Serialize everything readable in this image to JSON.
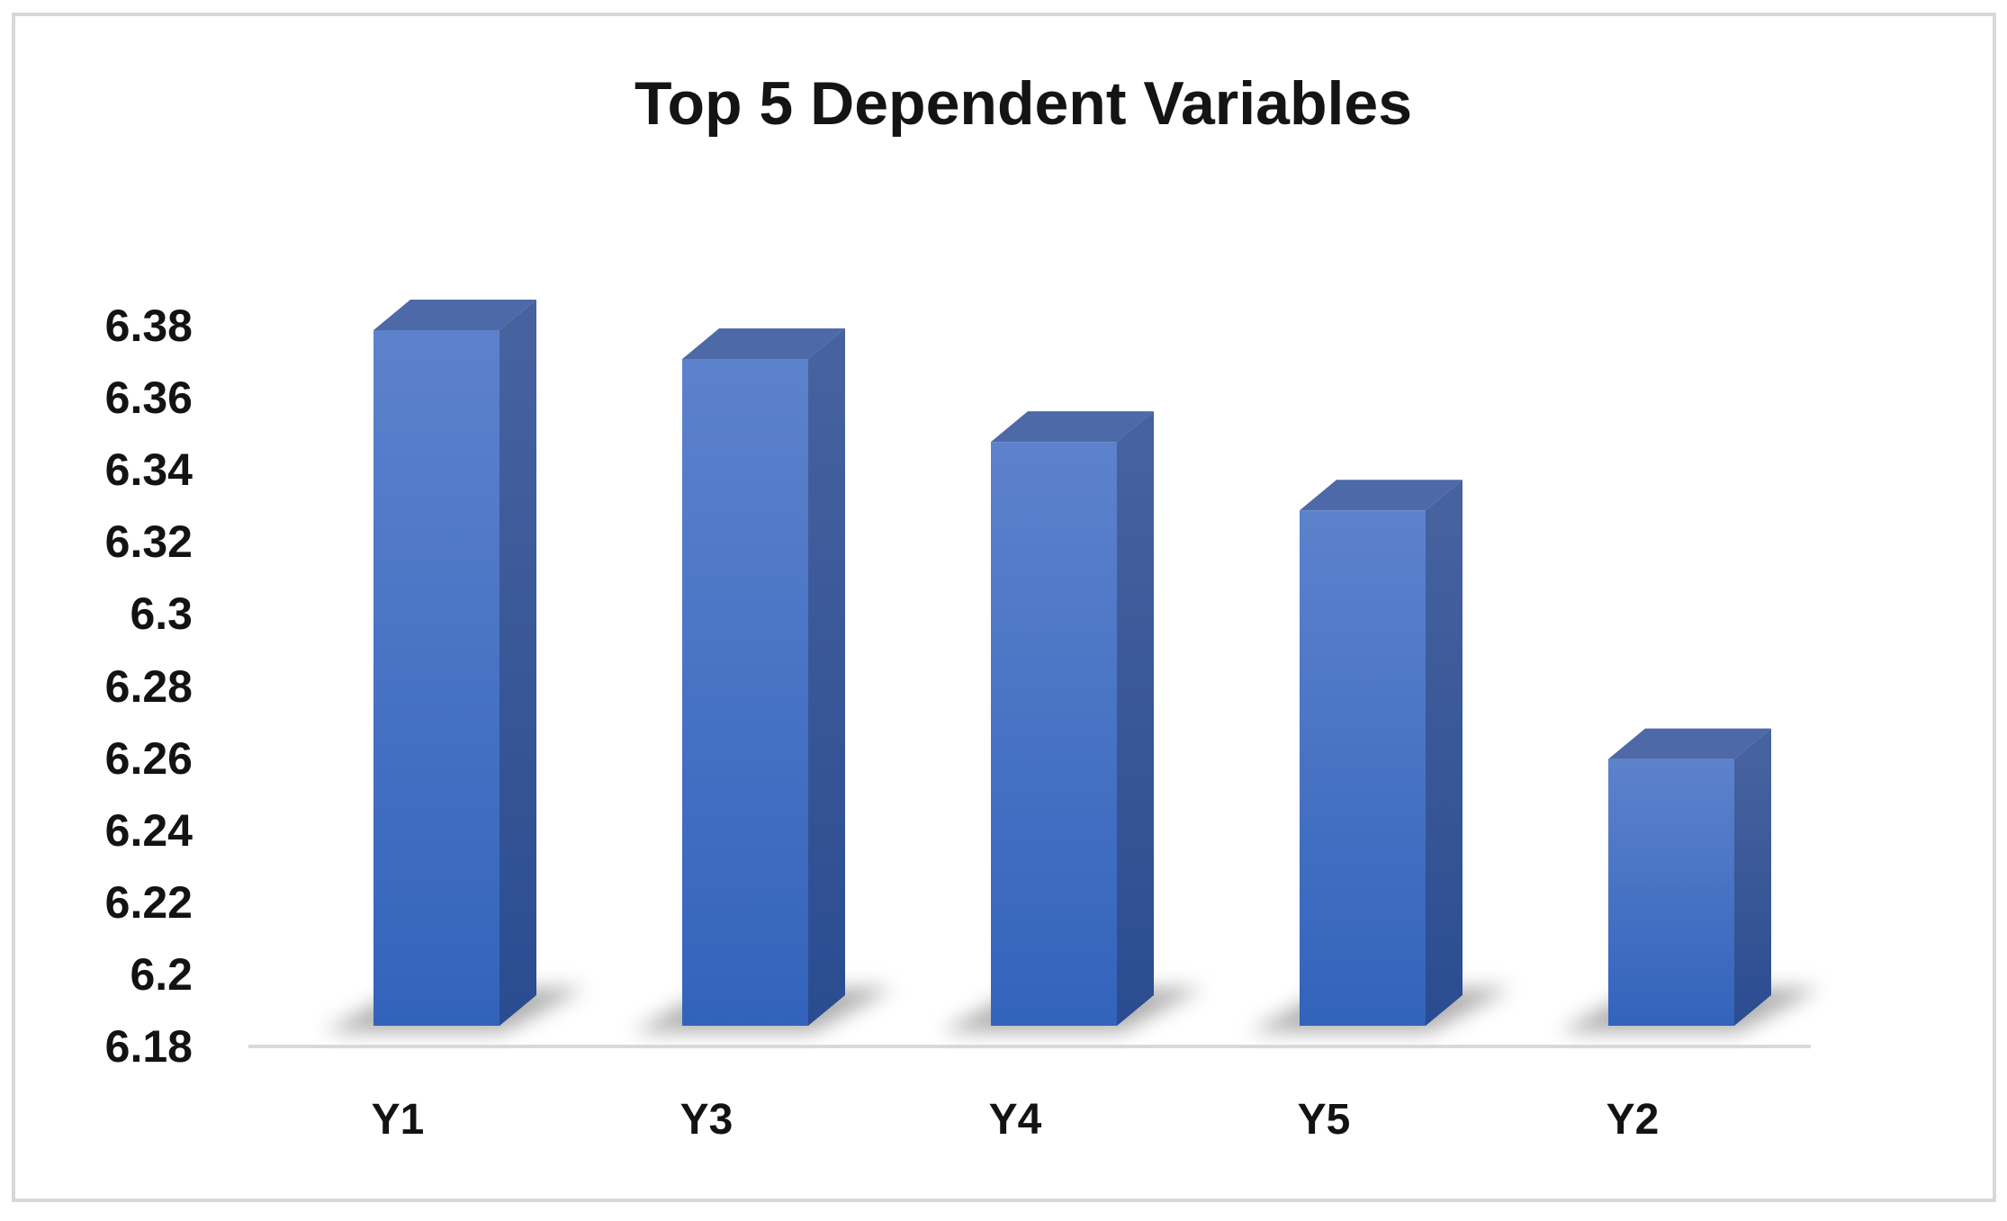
{
  "chart_data": {
    "type": "bar",
    "style": "3d-column",
    "title": "Top 5 Dependent Variables",
    "categories": [
      "Y1",
      "Y3",
      "Y4",
      "Y5",
      "Y2"
    ],
    "values": [
      6.379,
      6.371,
      6.348,
      6.329,
      6.26
    ],
    "xlabel": "",
    "ylabel": "",
    "ylim": [
      6.18,
      6.38
    ],
    "ytick_labels": [
      "6.38",
      "6.36",
      "6.34",
      "6.32",
      "6.3",
      "6.28",
      "6.26",
      "6.24",
      "6.22",
      "6.2",
      "6.18"
    ],
    "yticks": [
      6.38,
      6.36,
      6.34,
      6.32,
      6.3,
      6.28,
      6.26,
      6.24,
      6.22,
      6.2,
      6.18
    ],
    "grid": false,
    "legend": false,
    "colors": {
      "bar_front_top": "#5d82cc",
      "bar_front_bottom": "#3263bc",
      "bar_side_top": "#46629f",
      "bar_side_bottom": "#2a4c90",
      "bar_top_face": "#4e69a7",
      "shadow": "#6e6e6e",
      "axis_line": "#d9d9d9",
      "frame_border": "#d8d8d8",
      "text": "#131313",
      "background": "#ffffff"
    }
  }
}
